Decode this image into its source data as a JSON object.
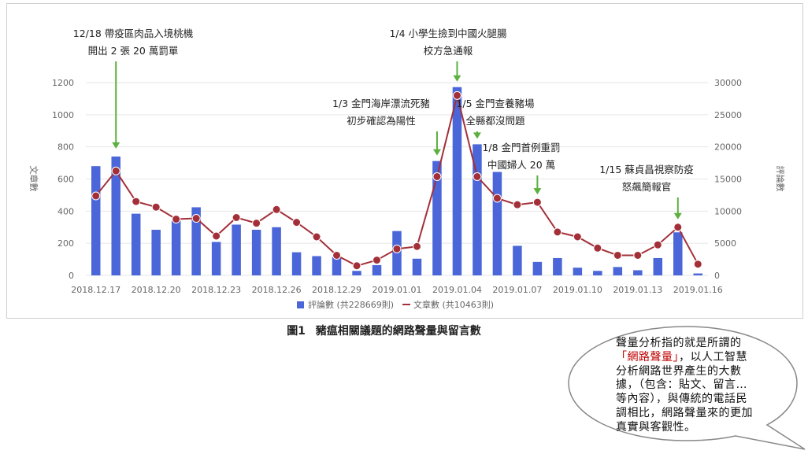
{
  "figure": {
    "caption_label": "圖1",
    "caption_text": "豬瘟相關議題的網路聲量與留言數"
  },
  "bubble": {
    "text_before": "聲量分析指的就是所謂的",
    "highlight": "「網路聲量」",
    "text_after": "，以人工智慧分析網路世界產生的大數據，（包含：貼文、留言…等內容），與傳統的電話民調相比，網路聲量來的更加真實與客觀性。"
  },
  "chart_data": {
    "type": "bar",
    "xlabel": "",
    "ylabel_left": "文章數",
    "ylabel_right": "評論數",
    "ylim_left": [
      0,
      1200
    ],
    "ylim_right": [
      0,
      30000
    ],
    "yticks_left": [
      "0",
      "200",
      "400",
      "600",
      "800",
      "1000",
      "1200"
    ],
    "yticks_right": [
      "0",
      "5000",
      "10000",
      "15000",
      "20000",
      "25000",
      "30000"
    ],
    "categories": [
      "2018.12.17",
      "2018.12.18",
      "2018.12.19",
      "2018.12.20",
      "2018.12.21",
      "2018.12.22",
      "2018.12.23",
      "2018.12.24",
      "2018.12.25",
      "2018.12.26",
      "2018.12.27",
      "2018.12.28",
      "2018.12.29",
      "2018.12.30",
      "2018.12.31",
      "2019.01.01",
      "2019.01.02",
      "2019.01.03",
      "2019.01.04",
      "2019.01.05",
      "2019.01.06",
      "2019.01.07",
      "2019.01.08",
      "2019.01.09",
      "2019.01.10",
      "2019.01.11",
      "2019.01.12",
      "2019.01.13",
      "2019.01.14",
      "2019.01.15",
      "2019.01.16"
    ],
    "xtick_labels": [
      "2018.12.17",
      "2018.12.20",
      "2018.12.23",
      "2018.12.26",
      "2018.12.29",
      "2019.01.01",
      "2019.01.04",
      "2019.01.07",
      "2019.01.10",
      "2019.01.13",
      "2019.01.16"
    ],
    "xtick_indices": [
      0,
      3,
      6,
      9,
      12,
      15,
      18,
      21,
      24,
      27,
      30
    ],
    "series": [
      {
        "name": "評論數 (共228669則)",
        "type": "bar",
        "axis": "right",
        "color": "#4a66d8",
        "values": [
          17000,
          18500,
          9600,
          7100,
          8500,
          10600,
          5200,
          7900,
          7100,
          7500,
          3600,
          3000,
          2900,
          700,
          1600,
          6900,
          2600,
          17800,
          29300,
          20400,
          16100,
          4600,
          2100,
          2700,
          1200,
          700,
          1300,
          800,
          2700,
          6700,
          300
        ]
      },
      {
        "name": "文章數 (共10463則)",
        "type": "line",
        "axis": "left",
        "color": "#a33039",
        "values": [
          495,
          650,
          460,
          425,
          350,
          355,
          245,
          360,
          325,
          410,
          330,
          240,
          125,
          60,
          95,
          165,
          180,
          615,
          1120,
          615,
          480,
          440,
          455,
          270,
          240,
          170,
          125,
          125,
          190,
          300,
          70
        ]
      }
    ],
    "legend_position": "bottom",
    "annotations": [
      {
        "index": 1,
        "lines": [
          "12/18 帶疫區肉品入境桃機",
          "開出 2 張 20 萬罰單"
        ]
      },
      {
        "index": 18,
        "lines": [
          "1/4 小學生撿到中國火腿腸",
          "校方急通報"
        ]
      },
      {
        "index": 17,
        "lines": [
          "1/3 金門海岸漂流死豬",
          "初步確認為陽性"
        ]
      },
      {
        "index": 19,
        "lines": [
          "1/5 金門查養豬場",
          "全縣都沒問題"
        ]
      },
      {
        "index": 22,
        "lines": [
          "1/8 金門首例重罰",
          "中國婦人 20 萬"
        ]
      },
      {
        "index": 29,
        "lines": [
          "1/15 蘇貞昌視察防疫",
          "怒飆簡報官"
        ]
      }
    ]
  }
}
